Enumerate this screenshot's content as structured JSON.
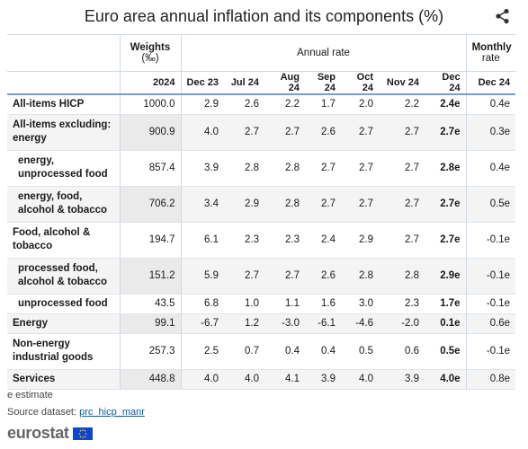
{
  "title": "Euro area annual inflation and its components (%)",
  "icons": {
    "share": "share-icon",
    "flag": "eu-flag-icon"
  },
  "header": {
    "weights": "Weights (‰)",
    "weights_line1": "Weights",
    "weights_line2": "(‰)",
    "annual_rate": "Annual rate",
    "monthly_line1": "Monthly",
    "monthly_line2": "rate",
    "weights_year": "2024",
    "columns": [
      "Dec 23",
      "Jul 24",
      "Aug 24",
      "Sep 24",
      "Oct 24",
      "Nov 24",
      "Dec 24"
    ],
    "monthly_col": "Dec 24"
  },
  "rows": [
    {
      "label": "All-items HICP",
      "weight": "1000.0",
      "values": [
        "2.9",
        "2.6",
        "2.2",
        "1.7",
        "2.0",
        "2.2",
        "2.4e"
      ],
      "monthly": "0.4e"
    },
    {
      "label": "All-items excluding: energy",
      "weight": "900.9",
      "values": [
        "4.0",
        "2.7",
        "2.7",
        "2.6",
        "2.7",
        "2.7",
        "2.7e"
      ],
      "monthly": "0.3e"
    },
    {
      "label": "energy, unprocessed food",
      "weight": "857.4",
      "values": [
        "3.9",
        "2.8",
        "2.8",
        "2.7",
        "2.7",
        "2.7",
        "2.8e"
      ],
      "monthly": "0.4e"
    },
    {
      "label": "energy, food, alcohol & tobacco",
      "weight": "706.2",
      "values": [
        "3.4",
        "2.9",
        "2.8",
        "2.7",
        "2.7",
        "2.7",
        "2.7e"
      ],
      "monthly": "0.5e"
    },
    {
      "label": "Food, alcohol & tobacco",
      "weight": "194.7",
      "values": [
        "6.1",
        "2.3",
        "2.3",
        "2.4",
        "2.9",
        "2.7",
        "2.7e"
      ],
      "monthly": "-0.1e"
    },
    {
      "label": "processed food, alcohol & tobacco",
      "weight": "151.2",
      "values": [
        "5.9",
        "2.7",
        "2.7",
        "2.6",
        "2.8",
        "2.8",
        "2.9e"
      ],
      "monthly": "-0.1e"
    },
    {
      "label": "unprocessed food",
      "weight": "43.5",
      "values": [
        "6.8",
        "1.0",
        "1.1",
        "1.6",
        "3.0",
        "2.3",
        "1.7e"
      ],
      "monthly": "-0.1e"
    },
    {
      "label": "Energy",
      "weight": "99.1",
      "values": [
        "-6.7",
        "1.2",
        "-3.0",
        "-6.1",
        "-4.6",
        "-2.0",
        "0.1e"
      ],
      "monthly": "0.6e"
    },
    {
      "label": "Non-energy industrial goods",
      "weight": "257.3",
      "values": [
        "2.5",
        "0.7",
        "0.4",
        "0.4",
        "0.5",
        "0.6",
        "0.5e"
      ],
      "monthly": "-0.1e"
    },
    {
      "label": "Services",
      "weight": "448.8",
      "values": [
        "4.0",
        "4.0",
        "4.1",
        "3.9",
        "4.0",
        "3.9",
        "4.0e"
      ],
      "monthly": "0.8e"
    }
  ],
  "footer": {
    "estimate_note": "e estimate",
    "source_label": "Source dataset:",
    "source_link": "prc_hicp_manr",
    "brand": "eurostat"
  }
}
